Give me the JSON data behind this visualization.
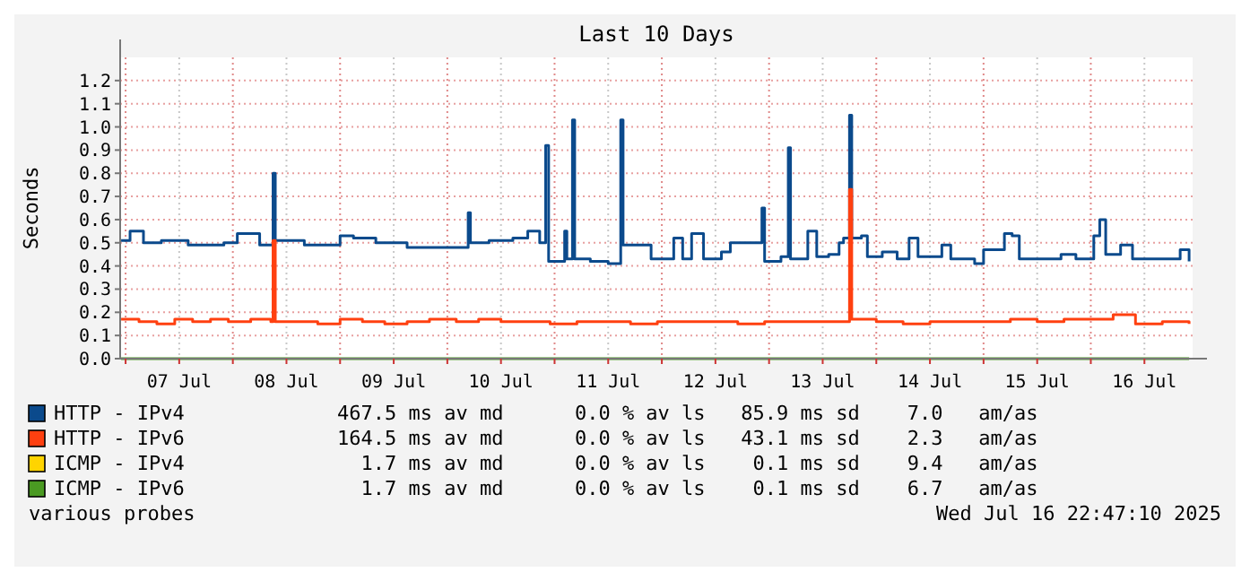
{
  "chart_data": {
    "type": "step",
    "title": "Last 10 Days",
    "ylabel": "Seconds",
    "xlim": [
      "2025-07-06T22:47",
      "2025-07-16T22:47"
    ],
    "xticks": [
      {
        "value": "2025-07-07T00:00",
        "label": null
      },
      {
        "value": "2025-07-07T12:00",
        "label": "07 Jul"
      },
      {
        "value": "2025-07-08T00:00",
        "label": null
      },
      {
        "value": "2025-07-08T12:00",
        "label": "08 Jul"
      },
      {
        "value": "2025-07-09T00:00",
        "label": null
      },
      {
        "value": "2025-07-09T12:00",
        "label": "09 Jul"
      },
      {
        "value": "2025-07-10T00:00",
        "label": null
      },
      {
        "value": "2025-07-10T12:00",
        "label": "10 Jul"
      },
      {
        "value": "2025-07-11T00:00",
        "label": null
      },
      {
        "value": "2025-07-11T12:00",
        "label": "11 Jul"
      },
      {
        "value": "2025-07-12T00:00",
        "label": null
      },
      {
        "value": "2025-07-12T12:00",
        "label": "12 Jul"
      },
      {
        "value": "2025-07-13T00:00",
        "label": null
      },
      {
        "value": "2025-07-13T12:00",
        "label": "13 Jul"
      },
      {
        "value": "2025-07-14T00:00",
        "label": null
      },
      {
        "value": "2025-07-14T12:00",
        "label": "14 Jul"
      },
      {
        "value": "2025-07-15T00:00",
        "label": null
      },
      {
        "value": "2025-07-15T12:00",
        "label": "15 Jul"
      },
      {
        "value": "2025-07-16T00:00",
        "label": null
      },
      {
        "value": "2025-07-16T12:00",
        "label": "16 Jul"
      }
    ],
    "ylim": [
      0,
      1.3
    ],
    "yticks": [
      {
        "value": 0,
        "label": "0.0"
      },
      0.1,
      0.2,
      0.3,
      0.4,
      0.5,
      0.6,
      0.7,
      0.8,
      0.9,
      {
        "value": 1,
        "label": "1.0"
      },
      1.1,
      1.2
    ],
    "grid": true,
    "legend": "bottom",
    "series": [
      {
        "name": "HTTP - IPv4",
        "color": "#0b4a8c",
        "x": [
          "2025-07-06T23:00",
          "2025-07-07T01:00",
          "2025-07-07T04:00",
          "2025-07-07T08:00",
          "2025-07-07T14:00",
          "2025-07-07T22:00",
          "2025-07-08T01:00",
          "2025-07-08T06:00",
          "2025-07-08T09:00",
          "2025-07-08T09:30",
          "2025-07-08T16:00",
          "2025-07-09T00:00",
          "2025-07-09T03:00",
          "2025-07-09T08:00",
          "2025-07-09T15:00",
          "2025-07-09T23:00",
          "2025-07-10T04:40",
          "2025-07-10T05:10",
          "2025-07-10T09:20",
          "2025-07-10T14:40",
          "2025-07-10T18:00",
          "2025-07-10T20:40",
          "2025-07-10T22:00",
          "2025-07-10T22:40",
          "2025-07-11T02:15",
          "2025-07-11T02:45",
          "2025-07-11T04:00",
          "2025-07-11T04:30",
          "2025-07-11T08:00",
          "2025-07-11T12:00",
          "2025-07-11T14:48",
          "2025-07-11T15:20",
          "2025-07-11T20:00",
          "2025-07-11T21:36",
          "2025-07-12T02:40",
          "2025-07-12T04:40",
          "2025-07-12T06:40",
          "2025-07-12T09:20",
          "2025-07-12T13:20",
          "2025-07-12T15:20",
          "2025-07-12T20:00",
          "2025-07-12T22:24",
          "2025-07-12T23:00",
          "2025-07-13T02:40",
          "2025-07-13T04:18",
          "2025-07-13T04:48",
          "2025-07-13T08:40",
          "2025-07-13T10:40",
          "2025-07-13T13:20",
          "2025-07-13T15:40",
          "2025-07-13T16:40",
          "2025-07-13T18:00",
          "2025-07-13T18:30",
          "2025-07-13T20:40",
          "2025-07-13T22:00",
          "2025-07-14T01:20",
          "2025-07-14T04:40",
          "2025-07-14T07:20",
          "2025-07-14T09:20",
          "2025-07-14T14:40",
          "2025-07-14T16:40",
          "2025-07-14T22:00",
          "2025-07-15T00:00",
          "2025-07-15T04:40",
          "2025-07-15T06:24",
          "2025-07-15T08:00",
          "2025-07-15T13:20",
          "2025-07-15T17:20",
          "2025-07-15T20:40",
          "2025-07-16T00:40",
          "2025-07-16T02:00",
          "2025-07-16T03:20",
          "2025-07-16T06:40",
          "2025-07-16T09:20",
          "2025-07-16T14:40",
          "2025-07-16T20:00",
          "2025-07-16T22:00"
        ],
        "values": [
          0.51,
          0.55,
          0.5,
          0.51,
          0.49,
          0.5,
          0.54,
          0.49,
          0.8,
          0.51,
          0.49,
          0.53,
          0.52,
          0.5,
          0.48,
          0.48,
          0.63,
          0.5,
          0.51,
          0.52,
          0.55,
          0.5,
          0.92,
          0.42,
          0.55,
          0.43,
          1.03,
          0.43,
          0.42,
          0.41,
          1.03,
          0.49,
          0.49,
          0.43,
          0.52,
          0.43,
          0.54,
          0.43,
          0.46,
          0.5,
          0.5,
          0.65,
          0.42,
          0.44,
          0.91,
          0.43,
          0.55,
          0.44,
          0.45,
          0.5,
          0.52,
          1.05,
          0.52,
          0.53,
          0.44,
          0.46,
          0.43,
          0.52,
          0.44,
          0.49,
          0.43,
          0.41,
          0.47,
          0.54,
          0.53,
          0.43,
          0.43,
          0.45,
          0.43,
          0.53,
          0.6,
          0.45,
          0.49,
          0.43,
          0.43,
          0.47,
          0.42
        ]
      },
      {
        "name": "HTTP - IPv6",
        "color": "#ff4010",
        "x": [
          "2025-07-06T23:00",
          "2025-07-07T03:00",
          "2025-07-07T07:00",
          "2025-07-07T11:00",
          "2025-07-07T15:00",
          "2025-07-07T19:00",
          "2025-07-07T23:00",
          "2025-07-08T04:00",
          "2025-07-08T08:30",
          "2025-07-08T09:00",
          "2025-07-08T09:30",
          "2025-07-08T14:00",
          "2025-07-08T19:00",
          "2025-07-09T00:00",
          "2025-07-09T05:00",
          "2025-07-09T10:00",
          "2025-07-09T15:00",
          "2025-07-09T20:00",
          "2025-07-10T02:00",
          "2025-07-10T07:00",
          "2025-07-10T12:00",
          "2025-07-10T18:00",
          "2025-07-10T23:00",
          "2025-07-11T05:00",
          "2025-07-11T11:00",
          "2025-07-11T17:00",
          "2025-07-11T23:00",
          "2025-07-12T05:00",
          "2025-07-12T11:00",
          "2025-07-12T17:00",
          "2025-07-12T23:00",
          "2025-07-13T05:00",
          "2025-07-13T11:00",
          "2025-07-13T17:30",
          "2025-07-13T18:00",
          "2025-07-13T18:30",
          "2025-07-14T00:00",
          "2025-07-14T06:00",
          "2025-07-14T12:00",
          "2025-07-14T18:00",
          "2025-07-15T00:00",
          "2025-07-15T06:00",
          "2025-07-15T12:00",
          "2025-07-15T18:00",
          "2025-07-16T00:00",
          "2025-07-16T05:00",
          "2025-07-16T10:00",
          "2025-07-16T16:00",
          "2025-07-16T22:00"
        ],
        "values": [
          0.17,
          0.16,
          0.15,
          0.17,
          0.16,
          0.17,
          0.16,
          0.17,
          0.16,
          0.51,
          0.16,
          0.16,
          0.15,
          0.17,
          0.16,
          0.15,
          0.16,
          0.17,
          0.16,
          0.17,
          0.16,
          0.16,
          0.15,
          0.16,
          0.16,
          0.15,
          0.16,
          0.16,
          0.16,
          0.15,
          0.16,
          0.16,
          0.16,
          0.16,
          0.73,
          0.17,
          0.16,
          0.15,
          0.16,
          0.16,
          0.16,
          0.17,
          0.16,
          0.17,
          0.17,
          0.19,
          0.15,
          0.16,
          0.15
        ]
      },
      {
        "name": "ICMP - IPv4",
        "color": "#ffd400"
      },
      {
        "name": "ICMP - IPv6",
        "color": "#4a9a22",
        "x": [
          "2025-07-06T23:00",
          "2025-07-16T22:00"
        ],
        "values": [
          0,
          0
        ]
      }
    ],
    "annotations": [
      "467.5 ms av md      0.0 % av ls   85.9 ms sd    7.0   am/as",
      "164.5 ms av md      0.0 % av ls   43.1 ms sd    2.3   am/as",
      "  1.7 ms av md      0.0 % av ls    0.1 ms sd    9.4   am/as",
      "  1.7 ms av md      0.0 % av ls    0.1 ms sd    6.7   am/as",
      "various probes",
      "Wed Jul 16 22:47:10 2025"
    ]
  }
}
